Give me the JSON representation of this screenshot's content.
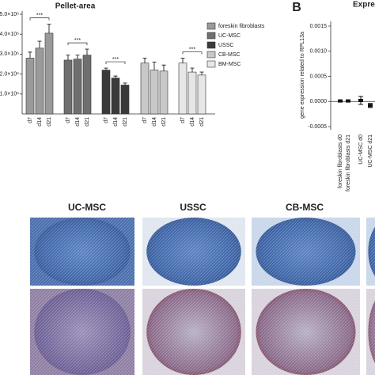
{
  "chart_data": [
    {
      "type": "bar",
      "title": "Pellet-area",
      "categories": [
        "d7",
        "d14",
        "d21"
      ],
      "series": [
        {
          "name": "foreskin fibroblasts",
          "color": "#9a9a9a",
          "values": [
            2800000,
            3300000,
            4050000
          ],
          "errors": [
            300000,
            350000,
            450000
          ]
        },
        {
          "name": "UC-MSC",
          "color": "#6f6f6f",
          "values": [
            2700000,
            2750000,
            2950000
          ],
          "errors": [
            250000,
            200000,
            300000
          ]
        },
        {
          "name": "USSC",
          "color": "#3a3a3a",
          "values": [
            2200000,
            1800000,
            1450000
          ],
          "errors": [
            100000,
            100000,
            100000
          ]
        },
        {
          "name": "CB-MSC",
          "color": "#c8c8c8",
          "values": [
            2550000,
            2200000,
            2150000
          ],
          "errors": [
            250000,
            400000,
            300000
          ]
        },
        {
          "name": "BM-MSC",
          "color": "#e6e6e6",
          "values": [
            2550000,
            2100000,
            1950000
          ],
          "errors": [
            250000,
            200000,
            150000
          ]
        }
      ],
      "ylim": [
        0,
        5000000
      ],
      "yticks": [
        {
          "value": 1000000,
          "label": "1.0×10⁶"
        },
        {
          "value": 2000000,
          "label": "2.0×10⁶"
        },
        {
          "value": 3000000,
          "label": "3.0×10⁶"
        },
        {
          "value": 4000000,
          "label": "4.0×10⁶"
        },
        {
          "value": 5000000,
          "label": "5.0×10⁶"
        }
      ],
      "annotations": [
        "***",
        "***",
        "***",
        "***"
      ]
    },
    {
      "type": "errorpoint",
      "panel_label": "B",
      "title": "Expre",
      "y_label": "gene expression related to RPL13a",
      "categories": [
        "foreskin fibroblasts d0",
        "foreskin fibroblasts d21",
        "UC-MSC d0",
        "UC-MSC d21"
      ],
      "values": [
        1e-05,
        1e-05,
        2e-05,
        -8e-05
      ],
      "errors": [
        2e-05,
        2e-05,
        8e-05,
        4e-05
      ],
      "ylim": [
        -0.0005,
        0.0015
      ],
      "yticks": [
        -0.0005,
        {
          "value": 0,
          "label": "0.0000"
        },
        0.0005,
        {
          "value": 0.001,
          "label": "0.0010"
        },
        0.0015
      ]
    }
  ],
  "micrographs": {
    "labels": [
      "UC-MSC",
      "USSC",
      "CB-MSC"
    ]
  }
}
